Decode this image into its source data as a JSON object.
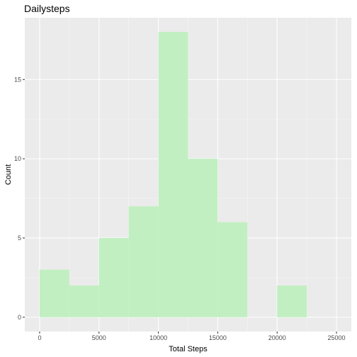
{
  "chart_data": {
    "type": "bar",
    "subtype": "histogram",
    "title": "Dailysteps",
    "xlabel": "Total Steps",
    "ylabel": "Count",
    "bin_width": 2500,
    "bins": [
      {
        "start": 0,
        "end": 2500,
        "count": 3
      },
      {
        "start": 2500,
        "end": 5000,
        "count": 2
      },
      {
        "start": 5000,
        "end": 7500,
        "count": 5
      },
      {
        "start": 7500,
        "end": 10000,
        "count": 7
      },
      {
        "start": 10000,
        "end": 12500,
        "count": 18
      },
      {
        "start": 12500,
        "end": 15000,
        "count": 10
      },
      {
        "start": 15000,
        "end": 17500,
        "count": 6
      },
      {
        "start": 17500,
        "end": 20000,
        "count": 0
      },
      {
        "start": 20000,
        "end": 22500,
        "count": 2
      },
      {
        "start": 22500,
        "end": 25000,
        "count": 0
      }
    ],
    "xlim": [
      -1250,
      26250
    ],
    "ylim": [
      -0.9,
      18.9
    ],
    "x_ticks": [
      0,
      5000,
      10000,
      15000,
      20000,
      25000
    ],
    "x_tick_labels": [
      "0",
      "5000",
      "10000",
      "15000",
      "20000",
      "25000"
    ],
    "y_ticks": [
      0,
      5,
      10,
      15
    ],
    "y_tick_labels": [
      "0",
      "5",
      "10",
      "15"
    ],
    "grid": true,
    "colors": {
      "bar_fill": "#c1efc1",
      "panel_background": "#ebebeb",
      "grid_major": "#ffffff",
      "grid_minor": "#f5f5f5",
      "tick_text": "#4d4d4d",
      "axis_tick": "#333333"
    }
  }
}
